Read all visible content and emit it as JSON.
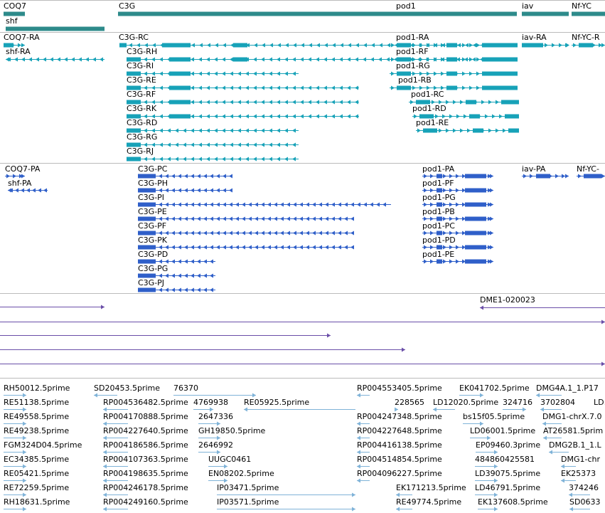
{
  "colors": {
    "gene": "#2e8b8b",
    "transcript": "#17a2b8",
    "protein": "#2f5fc9",
    "match": "#6a4ea8",
    "est": "#7fb3d8",
    "divider": "#bbbbbb"
  },
  "tracks": {
    "genes": {
      "labels": [
        "COQ7",
        "shf",
        "C3G",
        "pod1",
        "iav",
        "Nf-YC"
      ]
    },
    "transcripts": {
      "labels": [
        "COQ7-RA",
        "shf-RA",
        "C3G-RC",
        "C3G-RH",
        "C3G-RI",
        "C3G-RE",
        "C3G-RF",
        "C3G-RK",
        "C3G-RD",
        "C3G-RG",
        "C3G-RJ",
        "pod1-RA",
        "pod1-RF",
        "pod1-RG",
        "pod1-RB",
        "pod1-RC",
        "pod1-RD",
        "pod1-RE",
        "iav-RA",
        "Nf-YC-R"
      ]
    },
    "proteins": {
      "labels": [
        "COQ7-PA",
        "shf-PA",
        "C3G-PC",
        "C3G-PH",
        "C3G-PI",
        "C3G-PE",
        "C3G-PF",
        "C3G-PK",
        "C3G-PD",
        "C3G-PG",
        "C3G-PJ",
        "pod1-PA",
        "pod1-PF",
        "pod1-PG",
        "pod1-PB",
        "pod1-PC",
        "pod1-PD",
        "pod1-PE",
        "iav-PA",
        "Nf-YC-"
      ]
    },
    "matches": {
      "labels": [
        "DME1-020023"
      ]
    },
    "ests": {
      "labels": [
        "RH50012.5prime",
        "SD20453.5prime",
        "76370",
        "RP004553405.5prime",
        "EK041702.5prime",
        "DMG4A.1_1.P17",
        "RE51138.5prime",
        "RP004536482.5prime",
        "4769938",
        "RE05925.5prime",
        "228565",
        "LD12020.5prime",
        "324716",
        "3702804",
        "LD:",
        "RE49558.5prime",
        "RP004170888.5prime",
        "2647336",
        "RP004247348.5prime",
        "bs15f05.5prime",
        "DMG1-chrX.7.0",
        "RE49238.5prime",
        "RP004227640.5prime",
        "GH19850.5prime",
        "RP004227648.5prime",
        "LD06001.5prime",
        "AT26581.5prim",
        "FGM324D04.5prime",
        "RP004186586.5prime",
        "2646992",
        "RP004416138.5prime",
        "EP09460.3prime",
        "DMG2B.1_1.L",
        "EC34385.5prime",
        "RP004107363.5prime",
        "UUGC0461",
        "RP004514854.5prime",
        "484860425581",
        "DMG1-chr",
        "RE05421.5prime",
        "RP004198635.5prime",
        "EN08202.5prime",
        "RP004096227.5prime",
        "LD39075.5prime",
        "EK25373",
        "RE72259.5prime",
        "RP004246178.5prime",
        "IP03471.5prime",
        "EK171213.5prime",
        "LD46791.5prime",
        "374246",
        "RH18631.5prime",
        "RP004249160.5prime",
        "IP03571.5prime",
        "RE49774.5prime",
        "EK137608.5prime",
        "SD0633"
      ]
    }
  }
}
